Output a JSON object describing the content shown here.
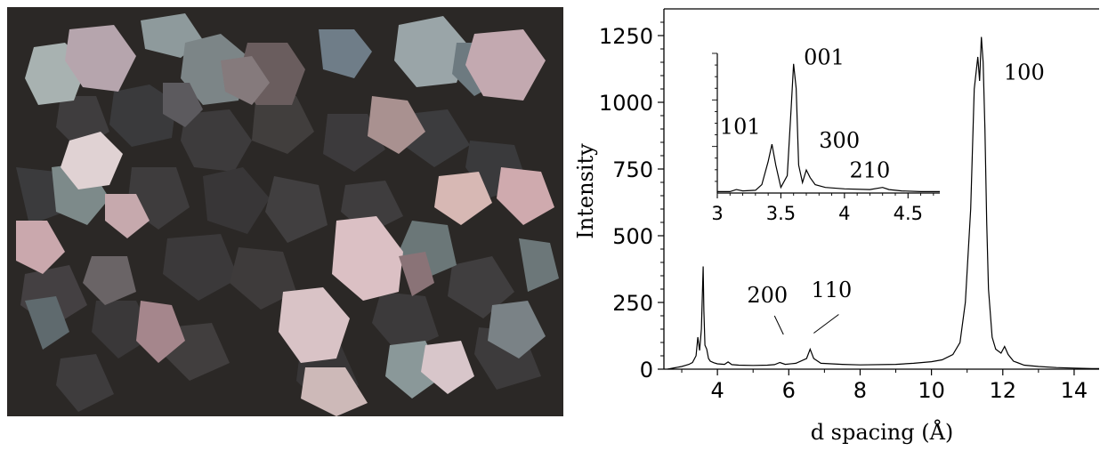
{
  "chart_data": {
    "type": "line",
    "xlabel": "d spacing (Å)",
    "ylabel": "Intensity",
    "xlim": [
      2.5,
      14.7
    ],
    "ylim": [
      0,
      1350
    ],
    "xticks": [
      4,
      6,
      8,
      10,
      12,
      14
    ],
    "yticks": [
      0,
      250,
      500,
      750,
      1000,
      1250
    ],
    "grid": false,
    "series": [
      {
        "x": [
          2.6,
          2.8,
          3.0,
          3.1,
          3.2,
          3.3,
          3.4,
          3.45,
          3.5,
          3.55,
          3.6,
          3.62,
          3.65,
          3.7,
          3.75,
          3.8,
          3.9,
          4.0,
          4.2,
          4.3,
          4.35,
          4.4,
          4.6,
          5.0,
          5.4,
          5.6,
          5.75,
          5.9,
          6.2,
          6.5,
          6.6,
          6.7,
          6.9,
          7.5,
          8.0,
          9.0,
          9.5,
          10.0,
          10.3,
          10.6,
          10.8,
          10.95,
          11.1,
          11.2,
          11.3,
          11.35,
          11.4,
          11.45,
          11.5,
          11.55,
          11.6,
          11.7,
          11.8,
          11.95,
          12.05,
          12.15,
          12.3,
          12.6,
          13.0,
          13.5,
          14.0,
          14.5,
          14.7
        ],
        "y": [
          0,
          5,
          10,
          14,
          18,
          25,
          50,
          120,
          70,
          150,
          385,
          220,
          90,
          75,
          40,
          30,
          24,
          20,
          18,
          27,
          22,
          17,
          15,
          14,
          15,
          17,
          25,
          18,
          22,
          40,
          75,
          40,
          22,
          18,
          16,
          18,
          22,
          28,
          35,
          55,
          100,
          250,
          600,
          1050,
          1170,
          1080,
          1245,
          1150,
          900,
          550,
          300,
          120,
          75,
          60,
          85,
          55,
          30,
          15,
          10,
          6,
          4,
          2,
          2
        ]
      }
    ],
    "annotations": [
      {
        "text": "100",
        "x": 12.6,
        "y": 1085
      },
      {
        "text": "200",
        "x": 5.4,
        "y": 250
      },
      {
        "text": "110",
        "x": 7.2,
        "y": 270
      }
    ],
    "inset": {
      "type": "line",
      "xlim": [
        3.0,
        4.75
      ],
      "xticks": [
        3,
        3.5,
        4,
        4.5
      ],
      "tick_labels": [
        "3",
        "3.5",
        "4",
        "4.5"
      ],
      "series": [
        {
          "x": [
            3.0,
            3.1,
            3.15,
            3.2,
            3.3,
            3.35,
            3.4,
            3.43,
            3.46,
            3.5,
            3.55,
            3.58,
            3.6,
            3.62,
            3.64,
            3.67,
            3.7,
            3.73,
            3.77,
            3.85,
            4.0,
            4.2,
            4.3,
            4.35,
            4.45,
            4.6,
            4.75
          ],
          "y": [
            2,
            2,
            5,
            3,
            4,
            12,
            45,
            70,
            40,
            8,
            25,
            120,
            185,
            150,
            40,
            15,
            33,
            22,
            12,
            8,
            6,
            5,
            8,
            5,
            3,
            2,
            2
          ]
        }
      ],
      "peak_labels": [
        {
          "text": "001",
          "x": 3.68,
          "y": 184
        },
        {
          "text": "101",
          "x": 3.18,
          "y": 85
        },
        {
          "text": "300",
          "x": 3.8,
          "y": 65
        },
        {
          "text": "210",
          "x": 4.2,
          "y": 22
        }
      ]
    }
  }
}
